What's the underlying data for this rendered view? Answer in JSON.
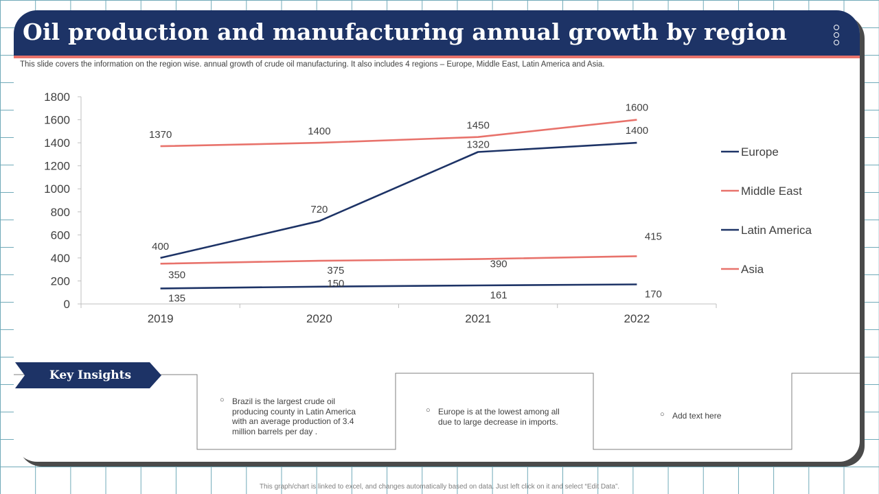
{
  "slide": {
    "title": "Oil production and manufacturing annual growth by region",
    "subtitle": "This slide covers the information on the region wise. annual growth of crude oil manufacturing. It also includes 4 regions – Europe, Middle East, Latin America and Asia.",
    "footer": "This graph/chart is linked to excel, and changes automatically based on data. Just left click on it and select “Edit Data”.",
    "menu_icon": "vertical-ellipsis-icon"
  },
  "key_insights": {
    "label": "Key Insights",
    "items": [
      {
        "text": "Brazil is the largest crude oil producing county in Latin America with an average production of  3.4 million  barrels per day ."
      },
      {
        "text": "Europe is at the lowest among all due to large decrease in imports."
      },
      {
        "text": "Add text here"
      }
    ]
  },
  "colors": {
    "header": "#1d3366",
    "accent": "#e8726b",
    "navy_series": "#1d3366",
    "coral_series": "#e8726b"
  },
  "chart_data": {
    "type": "line",
    "x": [
      "2019",
      "2020",
      "2021",
      "2022"
    ],
    "ylim": [
      0,
      1800
    ],
    "yticks": [
      0,
      200,
      400,
      600,
      800,
      1000,
      1200,
      1400,
      1600,
      1800
    ],
    "grid": false,
    "legend": "right",
    "series": [
      {
        "name": "Europe",
        "color": "#1d3366",
        "values": [
          135,
          150,
          161,
          170
        ]
      },
      {
        "name": "Middle East",
        "color": "#e8726b",
        "values": [
          350,
          375,
          390,
          415
        ]
      },
      {
        "name": "Latin America",
        "color": "#1d3366",
        "values": [
          400,
          720,
          1320,
          1400
        ]
      },
      {
        "name": "Asia",
        "color": "#e8726b",
        "values": [
          1370,
          1400,
          1450,
          1600
        ]
      }
    ]
  }
}
